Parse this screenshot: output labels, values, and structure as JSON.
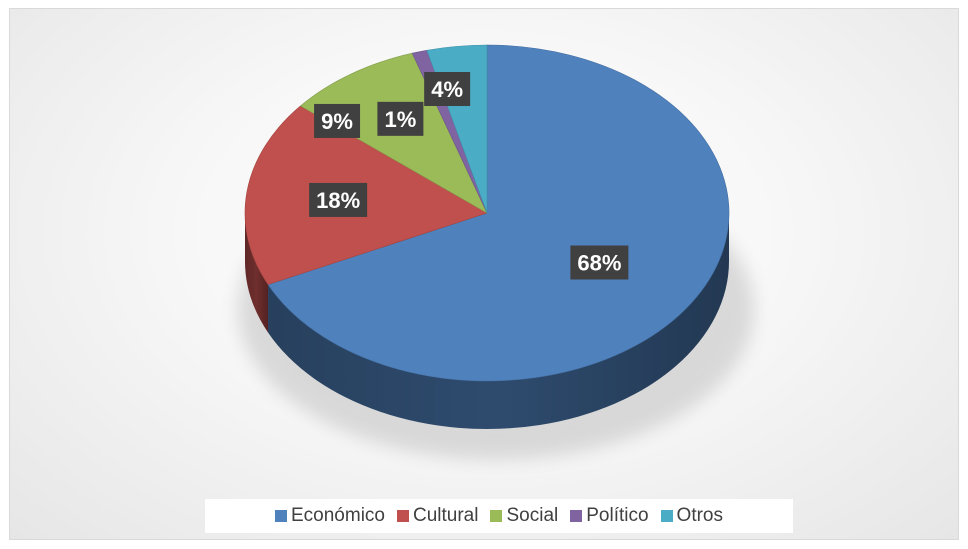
{
  "chart_data": {
    "type": "pie",
    "title": "",
    "style": "3d",
    "categories": [
      "Económico",
      "Cultural",
      "Social",
      "Político",
      "Otros"
    ],
    "values": [
      68,
      18,
      9,
      1,
      4
    ],
    "labels": [
      "68%",
      "18%",
      "9%",
      "1%",
      "4%"
    ],
    "colors": [
      "#4f81bd",
      "#c0504d",
      "#9bbb59",
      "#8064a2",
      "#4bacc6"
    ],
    "legend_position": "bottom"
  }
}
